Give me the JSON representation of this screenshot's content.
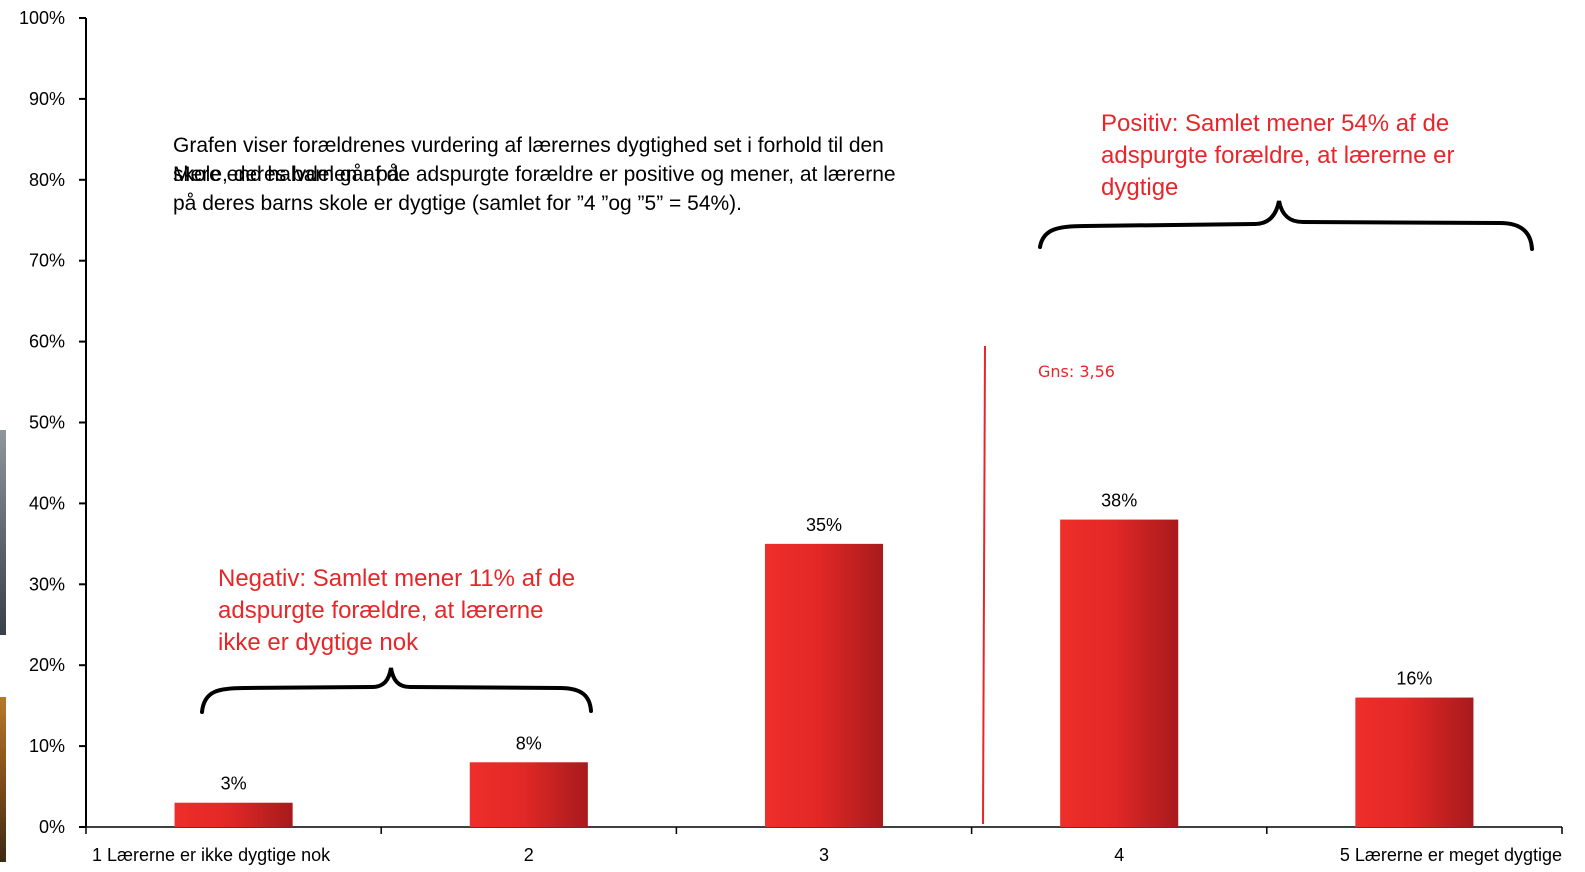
{
  "chart_data": {
    "type": "bar",
    "categories": [
      "1 Lærerne er ikke dygtige nok",
      "2",
      "3",
      "4",
      "5 Lærerne er meget dygtige"
    ],
    "values": [
      3,
      8,
      35,
      38,
      16
    ],
    "value_labels": [
      "3%",
      "8%",
      "35%",
      "38%",
      "16%"
    ],
    "ylim": [
      0,
      100
    ],
    "y_ticks": [
      "0%",
      "10%",
      "20%",
      "30%",
      "40%",
      "50%",
      "60%",
      "70%",
      "80%",
      "90%",
      "100%"
    ],
    "grid": false,
    "bar_color": "#d6241f",
    "average": {
      "label": "Gns: 3,56",
      "value": 3.56
    }
  },
  "description_paragraphs": [
    "Grafen viser forældrenes vurdering af lærernes dygtighed set i forhold til den skole, deres barn går på.",
    "Mere end halvdelen af de adspurgte forældre er positive og mener, at lærerne på deres barns skole er dygtige (samlet for ”4 ”og ”5” = 54%)."
  ],
  "annotations": {
    "negative": "Negativ: Samlet mener 11% af de adspurgte forældre, at lærerne ikke er dygtige nok",
    "positive": "Positiv: Samlet mener 54% af de adspurgte forældre, at lærerne er dygtige"
  },
  "colors": {
    "annotation": "#e8262a",
    "bar_light": "#ee2e2a",
    "bar_dark": "#a81a1c"
  }
}
